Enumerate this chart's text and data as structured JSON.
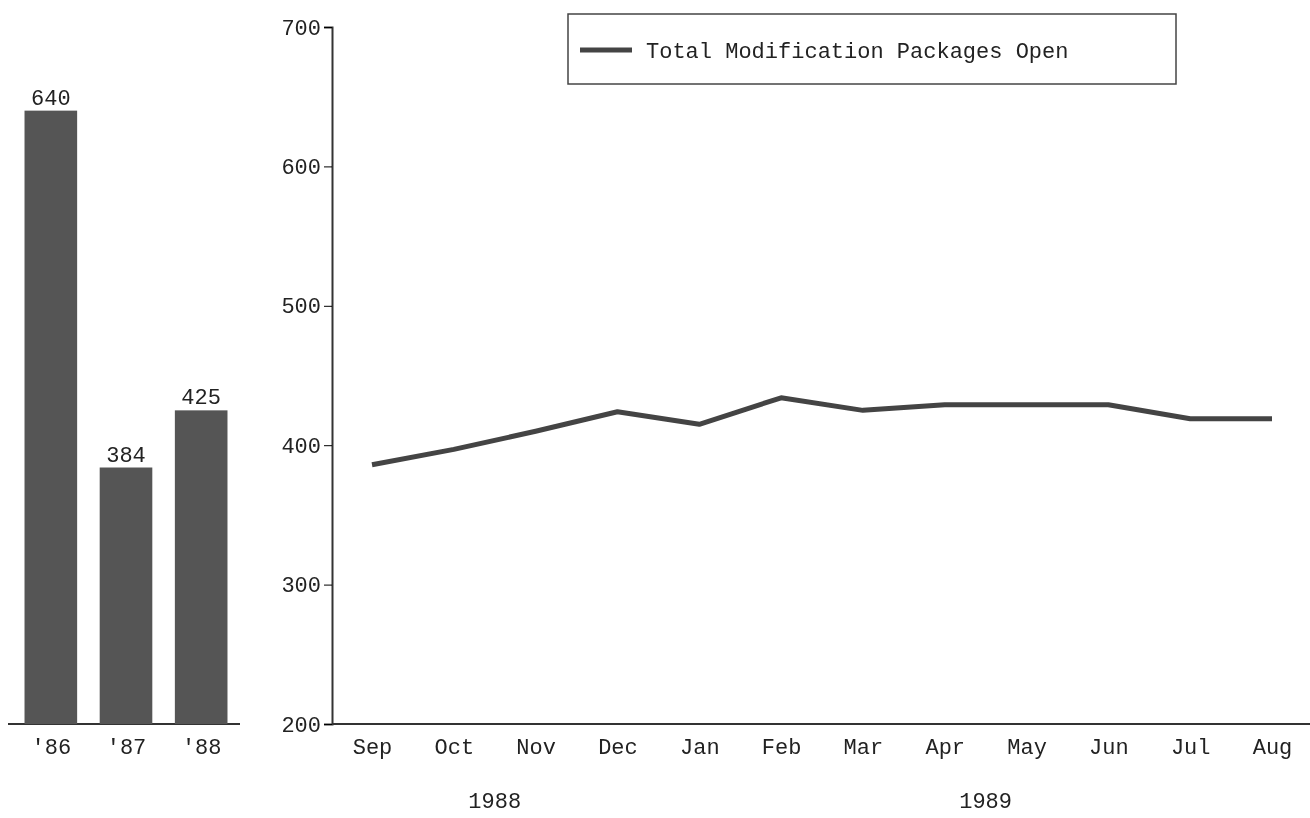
{
  "chart_data": [
    {
      "type": "bar",
      "categories": [
        "'86",
        "'87",
        "'88"
      ],
      "values": [
        640,
        384,
        425
      ],
      "color": "#555555",
      "ylim": [
        200,
        700
      ],
      "data_labels": true,
      "tick_labels": "x"
    },
    {
      "type": "line",
      "categories": [
        "Sep",
        "Oct",
        "Nov",
        "Dec",
        "Jan",
        "Feb",
        "Mar",
        "Apr",
        "May",
        "Jun",
        "Jul",
        "Aug"
      ],
      "series": [
        {
          "name": "Total Modification Packages Open",
          "color": "#444444",
          "values": [
            386,
            397,
            410,
            424,
            415,
            434,
            425,
            429,
            429,
            429,
            419,
            419
          ]
        }
      ],
      "ylim": [
        200,
        700
      ],
      "yticks": [
        200,
        300,
        400,
        500,
        600,
        700
      ],
      "legend": "top right",
      "annotations": [
        "1988",
        "1989"
      ]
    }
  ]
}
